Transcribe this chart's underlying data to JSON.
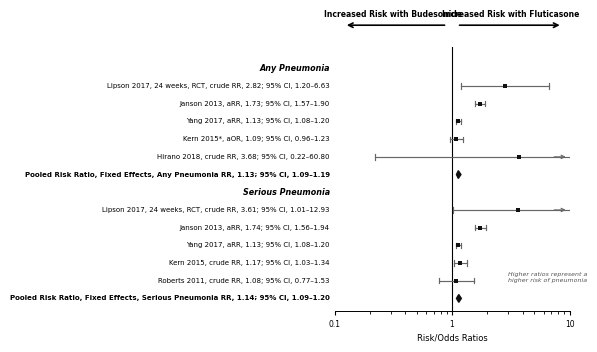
{
  "title_left": "Increased Risk with Budesonide",
  "title_right": "Increased Risk with Fluticasone",
  "xlabel": "Risk/Odds Ratios",
  "xlim_log": [
    0.1,
    10
  ],
  "ref_line": 1.0,
  "section1_label": "Any Pneumonia",
  "section2_label": "Serious Pneumonia",
  "studies": [
    {
      "label": "Lipson 2017, 24 weeks, RCT, crude RR, 2.82; 95% CI, 1.20–6.63",
      "rr": 2.82,
      "ci_lo": 1.2,
      "ci_hi": 6.63,
      "bold": false,
      "diamond": false,
      "section": 1,
      "arrow_right": false
    },
    {
      "label": "Janson 2013, aRR, 1.73; 95% CI, 1.57–1.90",
      "rr": 1.73,
      "ci_lo": 1.57,
      "ci_hi": 1.9,
      "bold": false,
      "diamond": false,
      "section": 1,
      "arrow_right": false
    },
    {
      "label": "Yang 2017, aRR, 1.13; 95% CI, 1.08–1.20",
      "rr": 1.13,
      "ci_lo": 1.08,
      "ci_hi": 1.2,
      "bold": false,
      "diamond": false,
      "section": 1,
      "arrow_right": false
    },
    {
      "label": "Kern 2015*, aOR, 1.09; 95% CI, 0.96–1.23",
      "rr": 1.09,
      "ci_lo": 0.96,
      "ci_hi": 1.23,
      "bold": false,
      "diamond": false,
      "section": 1,
      "arrow_right": false
    },
    {
      "label": "Hirano 2018, crude RR, 3.68; 95% CI, 0.22–60.80",
      "rr": 3.68,
      "ci_lo": 0.22,
      "ci_hi": 60.8,
      "bold": false,
      "diamond": false,
      "section": 1,
      "arrow_right": true
    },
    {
      "label": "Pooled Risk Ratio, Fixed Effects, Any Pneumonia RR, 1.13; 95% CI, 1.09–1.19",
      "rr": 1.13,
      "ci_lo": 1.09,
      "ci_hi": 1.19,
      "bold": true,
      "diamond": true,
      "section": 1,
      "arrow_right": false
    },
    {
      "label": "Lipson 2017, 24 weeks, RCT, crude RR, 3.61; 95% CI, 1.01–12.93",
      "rr": 3.61,
      "ci_lo": 1.01,
      "ci_hi": 12.93,
      "bold": false,
      "diamond": false,
      "section": 2,
      "arrow_right": true
    },
    {
      "label": "Janson 2013, aRR, 1.74; 95% CI, 1.56–1.94",
      "rr": 1.74,
      "ci_lo": 1.56,
      "ci_hi": 1.94,
      "bold": false,
      "diamond": false,
      "section": 2,
      "arrow_right": false
    },
    {
      "label": "Yang 2017, aRR, 1.13; 95% CI, 1.08–1.20",
      "rr": 1.13,
      "ci_lo": 1.08,
      "ci_hi": 1.2,
      "bold": false,
      "diamond": false,
      "section": 2,
      "arrow_right": false
    },
    {
      "label": "Kern 2015, crude RR, 1.17; 95% CI, 1.03–1.34",
      "rr": 1.17,
      "ci_lo": 1.03,
      "ci_hi": 1.34,
      "bold": false,
      "diamond": false,
      "section": 2,
      "arrow_right": false
    },
    {
      "label": "Roberts 2011, crude RR, 1.08; 95% CI, 0.77–1.53",
      "rr": 1.08,
      "ci_lo": 0.77,
      "ci_hi": 1.53,
      "bold": false,
      "diamond": false,
      "section": 2,
      "arrow_right": false
    },
    {
      "label": "Pooled Risk Ratio, Fixed Effects, Serious Pneumonia RR, 1.14; 95% CI, 1.09–1.20",
      "rr": 1.14,
      "ci_lo": 1.09,
      "ci_hi": 1.2,
      "bold": true,
      "diamond": true,
      "section": 2,
      "arrow_right": false
    }
  ],
  "annotation_text": "Higher ratios represent a\nhigher risk of pneumonia",
  "bg_color": "#ffffff",
  "line_color": "#666666",
  "dot_color": "#111111",
  "diamond_color": "#111111",
  "label_fontsize": 5.0,
  "section_fontsize": 5.8,
  "pooled_fontsize": 5.0
}
